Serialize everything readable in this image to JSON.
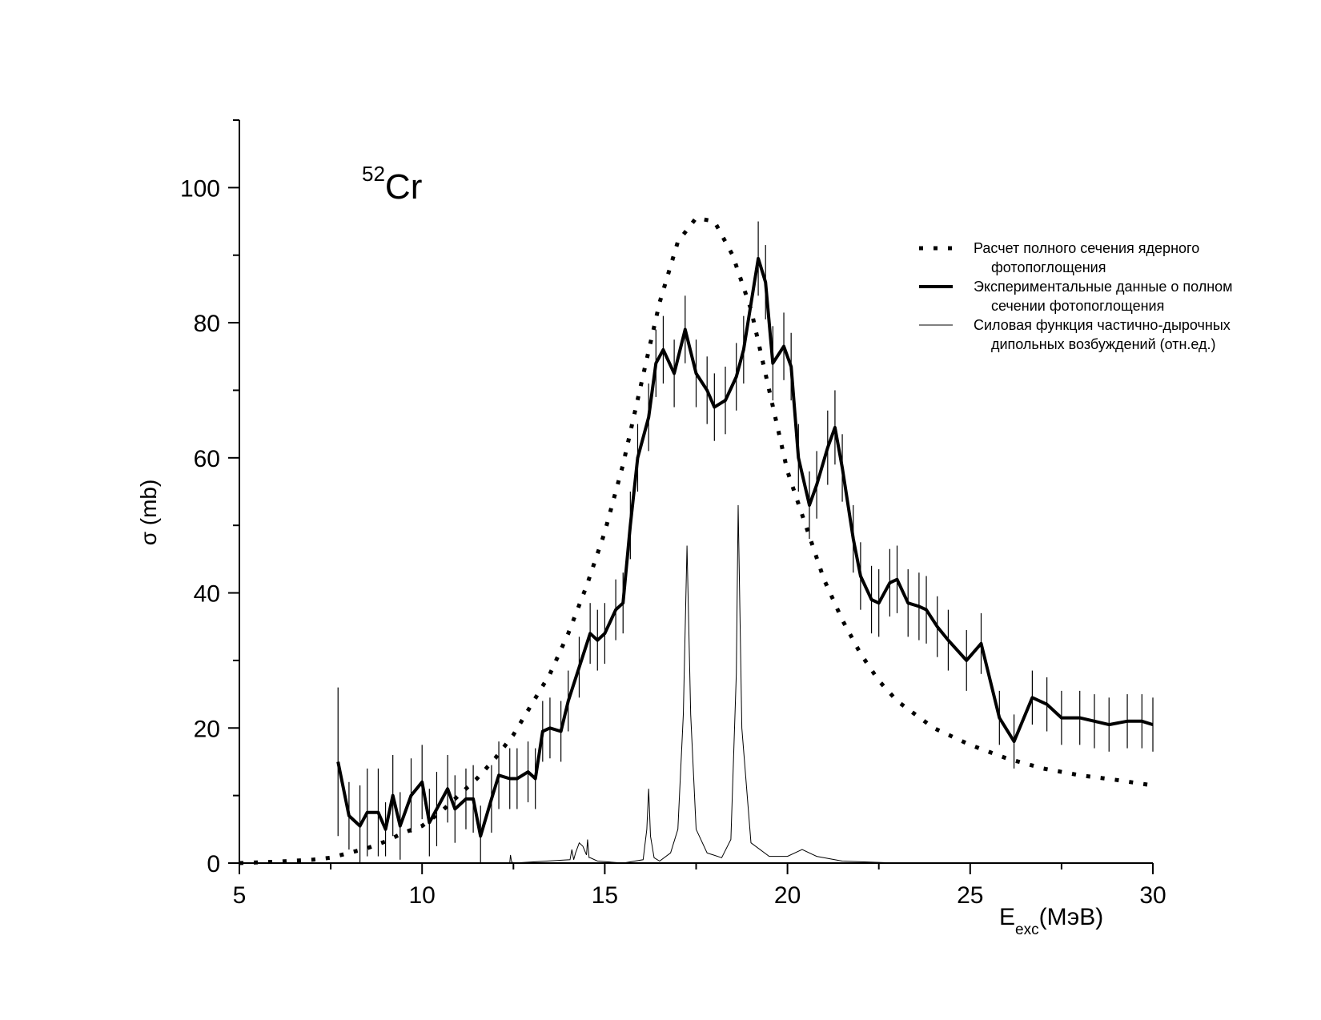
{
  "chart_data": {
    "type": "line",
    "nucleus_mass": "52",
    "nucleus_symbol": "Cr",
    "xlabel_main": "E",
    "xlabel_sub": "exc",
    "xlabel_unit": "(МэВ)",
    "ylabel": "σ (mb)",
    "xlim": [
      5,
      30
    ],
    "ylim": [
      0,
      110
    ],
    "x_ticks": [
      5,
      10,
      15,
      20,
      25,
      30
    ],
    "x_tick_labels": [
      "5",
      "10",
      "15",
      "20",
      "25",
      "30"
    ],
    "y_ticks": [
      0,
      20,
      40,
      60,
      80,
      100
    ],
    "y_tick_labels": [
      "0",
      "20",
      "40",
      "60",
      "80",
      "100"
    ],
    "grid": false,
    "legend_position": "right",
    "legend": [
      {
        "line1": "Расчет полного сечения ядерного",
        "line2": "фотопоглощения",
        "style": "dotted"
      },
      {
        "line1": "Экспериментальные данные о полном",
        "line2": "сечении фотопоглощения",
        "style": "thick"
      },
      {
        "line1": "Силовая функция частично-дырочных",
        "line2": "дипольных возбуждений (отн.ед.)",
        "style": "thin"
      }
    ],
    "series": [
      {
        "key": "calc",
        "style": "dotted",
        "x": [
          5,
          6,
          7,
          7.5,
          8,
          8.5,
          9,
          9.5,
          10,
          10.5,
          11,
          11.5,
          12,
          12.5,
          13,
          13.5,
          14,
          14.5,
          15,
          15.5,
          16,
          16.5,
          17,
          17.5,
          18,
          18.5,
          19,
          19.5,
          20,
          20.5,
          21,
          21.5,
          22,
          22.5,
          23,
          23.5,
          24,
          25,
          26,
          27,
          28,
          29,
          30
        ],
        "y": [
          0,
          0.2,
          0.5,
          0.8,
          1.5,
          2.2,
          3.2,
          4.5,
          5.5,
          7.5,
          10,
          12.5,
          15.5,
          19,
          23.5,
          28,
          34,
          41,
          49,
          59,
          71,
          83,
          92,
          95.5,
          95,
          90,
          82,
          70,
          58,
          50,
          42,
          36,
          31,
          27,
          24,
          22,
          20,
          17.5,
          15.5,
          14,
          13,
          12.3,
          11.5
        ]
      },
      {
        "key": "exp",
        "style": "thick",
        "x": [
          7.7,
          8,
          8.3,
          8.5,
          8.8,
          9,
          9.2,
          9.4,
          9.7,
          10,
          10.2,
          10.4,
          10.7,
          10.9,
          11.2,
          11.4,
          11.6,
          11.9,
          12.1,
          12.4,
          12.6,
          12.9,
          13.1,
          13.3,
          13.5,
          13.8,
          14,
          14.3,
          14.6,
          14.8,
          15,
          15.3,
          15.5,
          15.7,
          15.9,
          16.2,
          16.4,
          16.6,
          16.9,
          17.2,
          17.5,
          17.8,
          18,
          18.3,
          18.6,
          18.8,
          19.2,
          19.4,
          19.6,
          19.9,
          20.1,
          20.3,
          20.6,
          20.8,
          21.1,
          21.3,
          21.5,
          21.8,
          22,
          22.3,
          22.5,
          22.8,
          23,
          23.3,
          23.6,
          23.8,
          24.1,
          24.4,
          24.9,
          25.3,
          25.8,
          26.2,
          26.7,
          27.1,
          27.5,
          28,
          28.4,
          28.8,
          29.3,
          29.7,
          30
        ],
        "y": [
          15,
          7,
          5.5,
          7.5,
          7.5,
          5,
          10,
          5.5,
          10,
          12,
          6,
          8,
          11,
          8,
          9.5,
          9.5,
          4,
          9.5,
          13,
          12.5,
          12.5,
          13.5,
          12.5,
          19.5,
          20,
          19.5,
          24,
          29,
          34,
          33,
          34,
          37.5,
          38.5,
          50,
          60,
          66,
          74,
          76,
          72.5,
          79,
          72.5,
          70,
          67.5,
          68.5,
          72,
          76,
          89.5,
          86,
          74,
          76.5,
          73.5,
          60,
          53,
          56,
          61.5,
          64.5,
          58.5,
          48,
          42.5,
          39,
          38.5,
          41.5,
          42,
          38.5,
          38,
          37.5,
          35,
          33,
          30,
          32.5,
          21.5,
          18,
          24.5,
          23.5,
          21.5,
          21.5,
          21,
          20.5,
          21,
          21,
          20.5
        ],
        "errors": [
          11,
          5,
          6,
          6.5,
          6.5,
          4,
          6,
          5,
          5.5,
          5.5,
          5,
          5.5,
          5,
          5,
          4.5,
          5,
          4.5,
          5,
          5,
          4.5,
          4.5,
          4.5,
          4.5,
          4.5,
          4.5,
          4.5,
          4.5,
          4.5,
          4.5,
          4.5,
          4.5,
          4.5,
          4.5,
          5,
          5,
          5,
          5,
          5,
          5,
          5,
          5,
          5,
          5,
          5,
          5,
          5,
          5.5,
          5.5,
          5.5,
          5,
          5,
          5,
          5,
          5,
          5.5,
          5.5,
          5,
          5,
          5,
          5,
          5,
          5,
          5,
          5,
          5,
          5,
          4.5,
          4.5,
          4.5,
          4.5,
          4,
          4,
          4,
          4,
          4,
          4,
          4,
          4,
          4,
          4,
          4
        ]
      },
      {
        "key": "strength",
        "style": "thin",
        "x": [
          5,
          12.4,
          12.42,
          12.45,
          12.5,
          14.05,
          14.1,
          14.15,
          14.2,
          14.3,
          14.4,
          14.5,
          14.53,
          14.57,
          14.6,
          14.8,
          15.5,
          16.05,
          16.15,
          16.2,
          16.25,
          16.35,
          16.5,
          16.8,
          17.0,
          17.15,
          17.25,
          17.35,
          17.5,
          17.8,
          18.2,
          18.45,
          18.6,
          18.65,
          18.75,
          19.0,
          19.5,
          20.0,
          20.4,
          20.8,
          21.5,
          23,
          25,
          30
        ],
        "y": [
          0,
          0,
          1.2,
          0.2,
          0,
          0.5,
          2,
          0.5,
          1.5,
          3,
          2.5,
          1.2,
          3.5,
          0.8,
          0.8,
          0.3,
          0,
          0.5,
          5,
          11,
          4,
          0.8,
          0.3,
          1.5,
          5,
          22,
          47,
          22,
          5,
          1.5,
          0.8,
          3.5,
          28,
          53,
          20,
          3,
          1,
          1,
          2,
          1,
          0.3,
          0,
          0,
          0
        ]
      }
    ]
  }
}
